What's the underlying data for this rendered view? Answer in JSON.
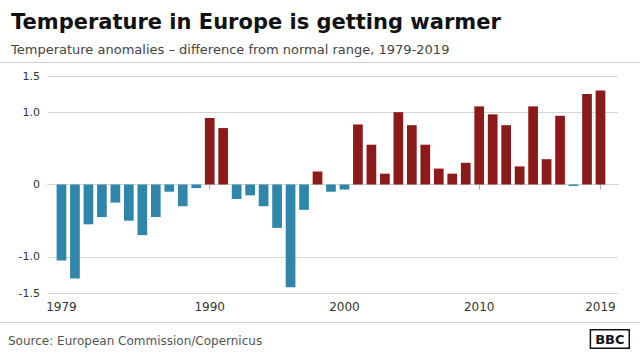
{
  "chart_data": {
    "type": "bar",
    "title": "Temperature in Europe is getting warmer",
    "subtitle": "Temperature anomalies – difference from normal range, 1979-2019",
    "annotations": [
      "Source: European Commission/Copernicus",
      "BBC"
    ],
    "x": [
      1979,
      1980,
      1981,
      1982,
      1983,
      1984,
      1985,
      1986,
      1987,
      1988,
      1989,
      1990,
      1991,
      1992,
      1993,
      1994,
      1995,
      1996,
      1997,
      1998,
      1999,
      2000,
      2001,
      2002,
      2003,
      2004,
      2005,
      2006,
      2007,
      2008,
      2009,
      2010,
      2011,
      2012,
      2013,
      2014,
      2015,
      2016,
      2017,
      2018,
      2019
    ],
    "values": [
      -1.05,
      -1.3,
      -0.55,
      -0.45,
      -0.25,
      -0.5,
      -0.7,
      -0.45,
      -0.1,
      -0.3,
      -0.05,
      0.92,
      0.78,
      -0.2,
      -0.15,
      -0.3,
      -0.6,
      -1.42,
      -0.35,
      0.18,
      -0.1,
      -0.07,
      0.83,
      0.55,
      0.15,
      1.0,
      0.82,
      0.55,
      0.22,
      0.15,
      0.3,
      1.08,
      0.97,
      0.82,
      0.25,
      1.08,
      0.35,
      0.95,
      -0.02,
      1.25,
      1.3
    ],
    "colors": [
      "#2E86AB",
      "#2E86AB",
      "#2E86AB",
      "#2E86AB",
      "#2E86AB",
      "#2E86AB",
      "#2E86AB",
      "#2E86AB",
      "#2E86AB",
      "#2E86AB",
      "#2E86AB",
      "#8B1A1A",
      "#8B1A1A",
      "#2E86AB",
      "#2E86AB",
      "#2E86AB",
      "#2E86AB",
      "#2E86AB",
      "#2E86AB",
      "#8B1A1A",
      "#2E86AB",
      "#2E86AB",
      "#8B1A1A",
      "#8B1A1A",
      "#8B1A1A",
      "#8B1A1A",
      "#8B1A1A",
      "#8B1A1A",
      "#8B1A1A",
      "#8B1A1A",
      "#8B1A1A",
      "#8B1A1A",
      "#8B1A1A",
      "#8B1A1A",
      "#8B1A1A",
      "#8B1A1A",
      "#8B1A1A",
      "#8B1A1A",
      "#2E86AB",
      "#8B1A1A",
      "#8B1A1A"
    ],
    "xlim": [
      1978.0,
      2020.3
    ],
    "xticks": [
      1979,
      1990,
      2000,
      2010,
      2019
    ],
    "ylim": [
      -1.5,
      1.5
    ],
    "yticks": [
      -1.5,
      {
        "value": -1.0,
        "label": "-1.0"
      },
      0,
      {
        "value": 1.0,
        "label": "1.0"
      },
      1.5
    ],
    "grid": true
  }
}
